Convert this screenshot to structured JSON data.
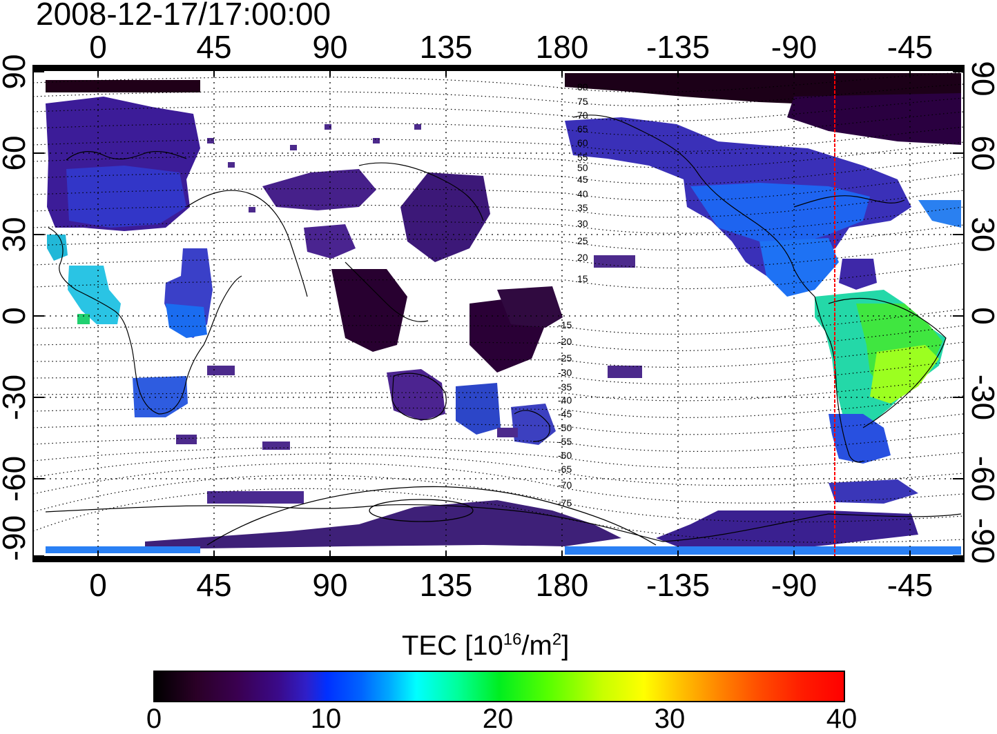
{
  "timestamp": "2008-12-17/17:00:00",
  "map": {
    "lon_ticks": [
      "0",
      "45",
      "90",
      "135",
      "180",
      "-135",
      "-90",
      "-45"
    ],
    "lon_tick_values": [
      0,
      45,
      90,
      135,
      180,
      225,
      270,
      315
    ],
    "lat_ticks": [
      "90",
      "60",
      "30",
      "0",
      "-30",
      "-60",
      "-90"
    ],
    "lat_tick_values": [
      90,
      60,
      30,
      0,
      -30,
      -60,
      -90
    ],
    "lon_range": [
      -19,
      340
    ],
    "lat_range": [
      -92,
      93
    ],
    "magnetic_latitude_labels": [
      "80",
      "75",
      "70",
      "65",
      "60",
      "55",
      "50",
      "45",
      "40",
      "35",
      "30",
      "25",
      "20",
      "15",
      "-15",
      "-20",
      "-25",
      "-30",
      "-35",
      "-40",
      "-45",
      "-50",
      "-55",
      "-60",
      "-65",
      "-70",
      "-75"
    ],
    "meridian_marker_lon": 287,
    "meridian_marker_color": "#ff0000",
    "grid": "dotted"
  },
  "colorbar": {
    "title_main": "TEC  [10",
    "title_sup1": "16",
    "title_mid": "/m",
    "title_sup2": "2",
    "title_end": "]",
    "ticks": [
      "0",
      "10",
      "20",
      "30",
      "40"
    ],
    "tick_values": [
      0,
      10,
      20,
      30,
      40
    ],
    "range": [
      0,
      40
    ],
    "colormap": "jet-like (black-purple-blue-cyan-green-yellow-red)"
  }
}
